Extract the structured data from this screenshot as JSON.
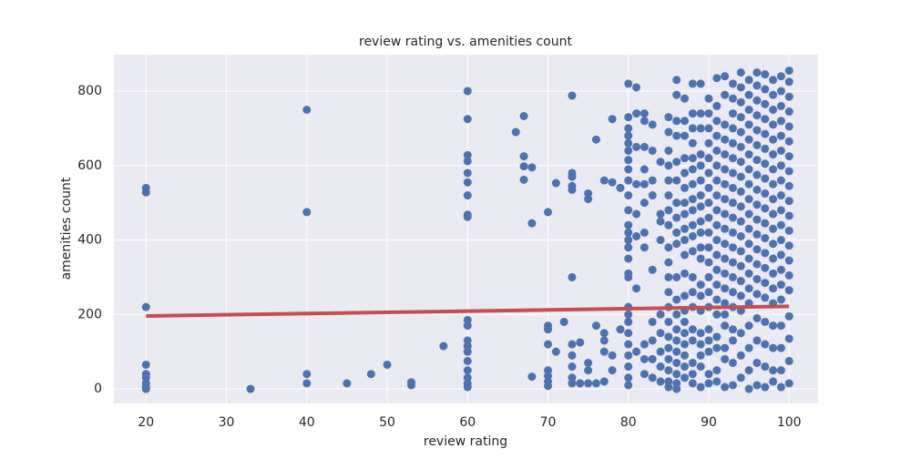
{
  "chart_data": {
    "type": "scatter",
    "title": "review rating vs. amenities count",
    "x_label": "review rating",
    "y_label": "amenities count",
    "xlim": [
      16,
      103.6
    ],
    "ylim": [
      -39,
      898
    ],
    "xticks": [
      20,
      30,
      40,
      50,
      60,
      70,
      80,
      90,
      100
    ],
    "yticks": [
      0,
      200,
      400,
      600,
      800
    ],
    "grid": true,
    "background": "#eaeaf2",
    "series": [
      {
        "type": "scatter",
        "color": "#4c72b0",
        "x": [
          20,
          20,
          20,
          20,
          20,
          20,
          20,
          20,
          20,
          33,
          40,
          40,
          40,
          40,
          45,
          48,
          50,
          53,
          53,
          57,
          60,
          60,
          60,
          60,
          60,
          60,
          60,
          60,
          60,
          60,
          60,
          60,
          60,
          60,
          60,
          60,
          60,
          60,
          60,
          66,
          67,
          67,
          67,
          67,
          68,
          68,
          68,
          70,
          70,
          70,
          70,
          70,
          70,
          70,
          70,
          71,
          71,
          72,
          73,
          73,
          73,
          73,
          73,
          73,
          73,
          73,
          73,
          73,
          73,
          74,
          74,
          75,
          75,
          75,
          75,
          75,
          76,
          76,
          76,
          77,
          77,
          77,
          77,
          77,
          78,
          78,
          78,
          78,
          79,
          79,
          80,
          80,
          80,
          80,
          80,
          80,
          80,
          80,
          80,
          80,
          80,
          80,
          80,
          80,
          80,
          80,
          80,
          80,
          80,
          80,
          80,
          80,
          80,
          80,
          80,
          80,
          80,
          81,
          81,
          81,
          81,
          81,
          81,
          81,
          81,
          82,
          82,
          82,
          82,
          82,
          82,
          82,
          82,
          82,
          82,
          82,
          83,
          83,
          83,
          83,
          83,
          83,
          83,
          83,
          83,
          84,
          84,
          84,
          84,
          84,
          84,
          84,
          84,
          84,
          85,
          85,
          85,
          85,
          85,
          85,
          85,
          85,
          85,
          85,
          85,
          85,
          85,
          85,
          85,
          85,
          85,
          85,
          85,
          85,
          86,
          86,
          86,
          86,
          86,
          86,
          86,
          86,
          86,
          86,
          86,
          86,
          86,
          86,
          86,
          86,
          86,
          86,
          86,
          86,
          87,
          87,
          87,
          87,
          87,
          87,
          87,
          87,
          87,
          87,
          87,
          87,
          87,
          87,
          87,
          87,
          87,
          87,
          87,
          87,
          88,
          88,
          88,
          88,
          88,
          88,
          88,
          88,
          88,
          88,
          88,
          88,
          88,
          88,
          88,
          88,
          88,
          88,
          88,
          88,
          89,
          89,
          89,
          89,
          89,
          89,
          89,
          89,
          89,
          89,
          89,
          89,
          89,
          89,
          89,
          89,
          89,
          89,
          89,
          89,
          90,
          90,
          90,
          90,
          90,
          90,
          90,
          90,
          90,
          90,
          90,
          90,
          90,
          90,
          90,
          90,
          90,
          90,
          90,
          90,
          91,
          91,
          91,
          91,
          91,
          91,
          91,
          91,
          91,
          91,
          91,
          91,
          91,
          91,
          91,
          91,
          91,
          91,
          91,
          91,
          92,
          92,
          92,
          92,
          92,
          92,
          92,
          92,
          92,
          92,
          92,
          92,
          92,
          92,
          92,
          92,
          92,
          92,
          92,
          92,
          93,
          93,
          93,
          93,
          93,
          93,
          93,
          93,
          93,
          93,
          93,
          93,
          93,
          93,
          93,
          93,
          93,
          93,
          93,
          93,
          94,
          94,
          94,
          94,
          94,
          94,
          94,
          94,
          94,
          94,
          94,
          94,
          94,
          94,
          94,
          94,
          94,
          94,
          94,
          94,
          95,
          95,
          95,
          95,
          95,
          95,
          95,
          95,
          95,
          95,
          95,
          95,
          95,
          95,
          95,
          95,
          95,
          95,
          95,
          95,
          96,
          96,
          96,
          96,
          96,
          96,
          96,
          96,
          96,
          96,
          96,
          96,
          96,
          96,
          96,
          96,
          96,
          96,
          96,
          96,
          97,
          97,
          97,
          97,
          97,
          97,
          97,
          97,
          97,
          97,
          97,
          97,
          97,
          97,
          97,
          97,
          97,
          97,
          97,
          97,
          98,
          98,
          98,
          98,
          98,
          98,
          98,
          98,
          98,
          98,
          98,
          98,
          98,
          98,
          98,
          98,
          98,
          98,
          98,
          98,
          99,
          99,
          99,
          99,
          99,
          99,
          99,
          99,
          99,
          99,
          99,
          99,
          99,
          99,
          99,
          99,
          99,
          99,
          99,
          99,
          100,
          100,
          100,
          100,
          100,
          100,
          100,
          100,
          100,
          100,
          100,
          100,
          100,
          100,
          100,
          100,
          100,
          100,
          100,
          100
        ],
        "values": [
          540,
          528,
          220,
          65,
          40,
          30,
          15,
          5,
          0,
          0,
          750,
          475,
          40,
          15,
          15,
          40,
          65,
          18,
          10,
          115,
          800,
          725,
          628,
          612,
          580,
          555,
          520,
          468,
          462,
          185,
          170,
          130,
          115,
          100,
          75,
          50,
          30,
          15,
          5,
          690,
          733,
          625,
          598,
          562,
          595,
          445,
          33,
          475,
          170,
          160,
          120,
          50,
          35,
          20,
          8,
          553,
          100,
          180,
          788,
          580,
          570,
          545,
          535,
          300,
          120,
          90,
          60,
          30,
          15,
          15,
          125,
          525,
          510,
          70,
          50,
          15,
          670,
          170,
          15,
          560,
          150,
          130,
          100,
          20,
          725,
          555,
          90,
          50,
          540,
          160,
          820,
          730,
          700,
          680,
          660,
          640,
          615,
          590,
          560,
          520,
          480,
          440,
          420,
          400,
          380,
          350,
          310,
          300,
          220,
          200,
          180,
          150,
          120,
          90,
          60,
          30,
          10,
          740,
          810,
          650,
          550,
          470,
          410,
          270,
          100,
          740,
          720,
          650,
          590,
          550,
          500,
          420,
          380,
          120,
          80,
          40,
          710,
          640,
          560,
          520,
          320,
          180,
          130,
          80,
          30,
          610,
          470,
          450,
          400,
          200,
          150,
          100,
          60,
          20,
          730,
          690,
          640,
          600,
          560,
          520,
          480,
          440,
          380,
          340,
          300,
          260,
          220,
          180,
          140,
          110,
          80,
          50,
          20,
          5,
          830,
          790,
          720,
          680,
          610,
          560,
          500,
          460,
          420,
          390,
          300,
          240,
          200,
          160,
          130,
          100,
          70,
          40,
          15,
          0,
          780,
          720,
          680,
          620,
          580,
          540,
          500,
          470,
          430,
          400,
          360,
          310,
          250,
          210,
          180,
          150,
          120,
          90,
          60,
          30,
          820,
          740,
          700,
          660,
          620,
          590,
          550,
          510,
          480,
          440,
          410,
          370,
          300,
          260,
          220,
          160,
          130,
          70,
          40,
          15,
          820,
          740,
          700,
          630,
          600,
          560,
          520,
          490,
          450,
          420,
          380,
          350,
          280,
          250,
          210,
          150,
          120,
          90,
          60,
          5,
          780,
          740,
          700,
          660,
          620,
          580,
          540,
          500,
          460,
          420,
          380,
          340,
          300,
          260,
          220,
          160,
          130,
          100,
          40,
          15,
          835,
          760,
          720,
          680,
          640,
          600,
          560,
          520,
          480,
          440,
          400,
          360,
          320,
          280,
          240,
          200,
          140,
          110,
          50,
          20,
          840,
          790,
          710,
          670,
          630,
          590,
          550,
          510,
          470,
          430,
          390,
          350,
          310,
          270,
          230,
          200,
          170,
          110,
          80,
          5,
          820,
          780,
          740,
          700,
          660,
          620,
          580,
          540,
          500,
          460,
          420,
          380,
          340,
          300,
          260,
          220,
          160,
          130,
          70,
          10,
          850,
          810,
          770,
          730,
          690,
          650,
          610,
          570,
          530,
          490,
          450,
          410,
          370,
          330,
          290,
          250,
          210,
          150,
          90,
          30,
          830,
          790,
          750,
          710,
          670,
          630,
          590,
          550,
          510,
          470,
          430,
          390,
          350,
          310,
          270,
          230,
          170,
          110,
          50,
          0,
          850,
          815,
          775,
          735,
          695,
          655,
          615,
          575,
          535,
          495,
          455,
          415,
          375,
          335,
          295,
          255,
          190,
          130,
          70,
          10,
          845,
          805,
          765,
          725,
          685,
          645,
          605,
          565,
          525,
          485,
          445,
          405,
          365,
          325,
          285,
          245,
          180,
          120,
          60,
          5,
          830,
          790,
          750,
          710,
          670,
          630,
          590,
          550,
          510,
          470,
          430,
          390,
          350,
          310,
          270,
          230,
          170,
          110,
          50,
          20,
          840,
          800,
          760,
          720,
          680,
          640,
          600,
          560,
          520,
          480,
          440,
          400,
          360,
          320,
          280,
          240,
          170,
          110,
          50,
          5,
          855,
          825,
          785,
          745,
          705,
          665,
          625,
          585,
          545,
          505,
          465,
          425,
          385,
          345,
          305,
          265,
          195,
          135,
          75,
          15
        ]
      },
      {
        "type": "line",
        "color": "#c44e52",
        "x": [
          20,
          100
        ],
        "values": [
          196,
          222
        ]
      }
    ]
  }
}
